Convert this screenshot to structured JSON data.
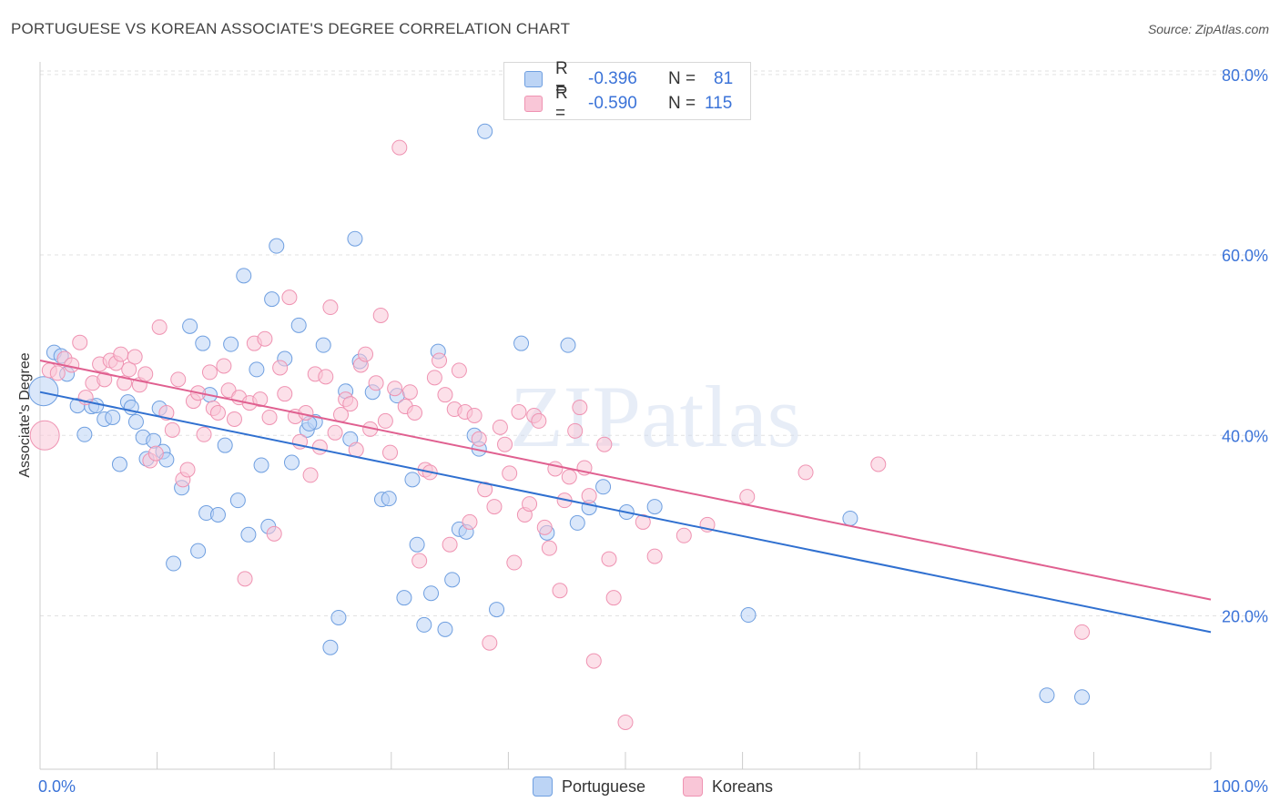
{
  "title": "PORTUGUESE VS KOREAN ASSOCIATE'S DEGREE CORRELATION CHART",
  "source": "Source: ZipAtlas.com",
  "watermark": "ZIPatlas",
  "legend": {
    "rows": [
      {
        "r_label": "R =",
        "r_value": "-0.396",
        "n_label": "N =",
        "n_value": "81"
      },
      {
        "r_label": "R =",
        "r_value": "-0.590",
        "n_label": "N =",
        "n_value": "115"
      }
    ]
  },
  "chart_data": {
    "type": "scatter",
    "title": "PORTUGUESE VS KOREAN ASSOCIATE'S DEGREE CORRELATION CHART",
    "xlabel": "",
    "ylabel": "Associate's Degree",
    "xlim": [
      0,
      100
    ],
    "ylim": [
      3,
      82
    ],
    "x_tick_labels": [
      "0.0%",
      "100.0%"
    ],
    "y_ticks": [
      20,
      40,
      60,
      80
    ],
    "y_tick_labels": [
      "20.0%",
      "40.0%",
      "60.0%",
      "80.0%"
    ],
    "grid": true,
    "legend_position": "top-center",
    "colors": {
      "portuguese": "#6f9fe0",
      "koreans": "#ef93b2",
      "portuguese_line": "#3070d0",
      "koreans_line": "#e06090",
      "tick_label": "#3b73d8"
    },
    "series": [
      {
        "name": "Portuguese",
        "stats": {
          "r": -0.396,
          "n": 81
        },
        "trend": {
          "x": [
            0,
            100
          ],
          "y": [
            44.8,
            18.2
          ]
        },
        "points": [
          [
            0.3,
            44.9
          ],
          [
            1.2,
            49.2
          ],
          [
            1.8,
            48.8
          ],
          [
            2.3,
            46.8
          ],
          [
            3.2,
            43.3
          ],
          [
            3.8,
            40.1
          ],
          [
            4.4,
            43.2
          ],
          [
            4.8,
            43.3
          ],
          [
            5.5,
            41.8
          ],
          [
            6.2,
            42.0
          ],
          [
            6.8,
            36.8
          ],
          [
            7.5,
            43.7
          ],
          [
            7.8,
            43.1
          ],
          [
            8.2,
            41.5
          ],
          [
            8.8,
            39.8
          ],
          [
            9.1,
            37.4
          ],
          [
            9.7,
            39.4
          ],
          [
            10.5,
            38.2
          ],
          [
            10.8,
            37.3
          ],
          [
            10.2,
            43.0
          ],
          [
            11.4,
            25.8
          ],
          [
            12.1,
            34.2
          ],
          [
            12.8,
            52.1
          ],
          [
            13.5,
            27.2
          ],
          [
            13.9,
            50.2
          ],
          [
            14.5,
            44.5
          ],
          [
            14.2,
            31.4
          ],
          [
            15.2,
            31.2
          ],
          [
            15.8,
            38.9
          ],
          [
            16.3,
            50.1
          ],
          [
            16.9,
            32.8
          ],
          [
            17.4,
            57.7
          ],
          [
            17.8,
            29.0
          ],
          [
            18.5,
            47.3
          ],
          [
            18.9,
            36.7
          ],
          [
            19.5,
            29.9
          ],
          [
            19.8,
            55.1
          ],
          [
            20.2,
            61.0
          ],
          [
            20.9,
            48.5
          ],
          [
            21.5,
            37.0
          ],
          [
            22.1,
            52.2
          ],
          [
            22.8,
            40.6
          ],
          [
            23.5,
            41.5
          ],
          [
            24.2,
            50.0
          ],
          [
            24.8,
            16.5
          ],
          [
            25.5,
            19.8
          ],
          [
            26.1,
            44.9
          ],
          [
            26.5,
            39.6
          ],
          [
            26.9,
            61.8
          ],
          [
            27.3,
            48.2
          ],
          [
            28.4,
            44.8
          ],
          [
            29.2,
            32.9
          ],
          [
            29.8,
            33.0
          ],
          [
            30.5,
            44.4
          ],
          [
            31.1,
            22.0
          ],
          [
            31.8,
            35.1
          ],
          [
            32.2,
            27.9
          ],
          [
            32.8,
            19.0
          ],
          [
            33.4,
            22.5
          ],
          [
            34.0,
            49.3
          ],
          [
            34.6,
            18.5
          ],
          [
            35.2,
            24.0
          ],
          [
            35.8,
            29.6
          ],
          [
            36.4,
            29.3
          ],
          [
            37.1,
            40.0
          ],
          [
            37.5,
            38.5
          ],
          [
            38.0,
            73.7
          ],
          [
            39.0,
            20.7
          ],
          [
            41.1,
            50.2
          ],
          [
            43.3,
            29.2
          ],
          [
            45.1,
            50.0
          ],
          [
            45.9,
            30.3
          ],
          [
            46.9,
            32.0
          ],
          [
            48.1,
            34.3
          ],
          [
            50.1,
            31.5
          ],
          [
            52.5,
            32.1
          ],
          [
            60.5,
            20.1
          ],
          [
            69.2,
            30.8
          ],
          [
            86.0,
            11.2
          ],
          [
            89.0,
            11.0
          ],
          [
            23.0,
            41.3
          ]
        ]
      },
      {
        "name": "Koreans",
        "stats": {
          "r": -0.59,
          "n": 115
        },
        "trend": {
          "x": [
            0,
            100
          ],
          "y": [
            48.3,
            21.8
          ]
        },
        "points": [
          [
            0.4,
            40.0
          ],
          [
            0.8,
            47.2
          ],
          [
            1.5,
            46.9
          ],
          [
            2.1,
            48.5
          ],
          [
            2.7,
            47.8
          ],
          [
            3.4,
            50.3
          ],
          [
            3.9,
            44.2
          ],
          [
            4.5,
            45.8
          ],
          [
            5.1,
            47.9
          ],
          [
            5.5,
            46.2
          ],
          [
            6.0,
            48.3
          ],
          [
            6.5,
            48.0
          ],
          [
            6.9,
            49.0
          ],
          [
            7.2,
            45.8
          ],
          [
            7.6,
            47.3
          ],
          [
            8.1,
            48.7
          ],
          [
            8.5,
            45.6
          ],
          [
            9.0,
            46.8
          ],
          [
            9.4,
            37.2
          ],
          [
            9.9,
            38.0
          ],
          [
            10.2,
            52.0
          ],
          [
            10.8,
            42.5
          ],
          [
            11.3,
            40.6
          ],
          [
            11.8,
            46.2
          ],
          [
            12.2,
            35.1
          ],
          [
            12.6,
            36.2
          ],
          [
            13.1,
            43.8
          ],
          [
            13.5,
            44.7
          ],
          [
            14.0,
            40.1
          ],
          [
            14.5,
            47.0
          ],
          [
            14.8,
            43.0
          ],
          [
            15.2,
            42.5
          ],
          [
            15.7,
            47.7
          ],
          [
            16.1,
            45.0
          ],
          [
            16.6,
            41.8
          ],
          [
            17.0,
            44.2
          ],
          [
            17.5,
            24.1
          ],
          [
            17.9,
            43.6
          ],
          [
            18.3,
            50.2
          ],
          [
            18.8,
            44.0
          ],
          [
            19.2,
            50.7
          ],
          [
            19.6,
            42.0
          ],
          [
            20.0,
            29.1
          ],
          [
            20.5,
            47.5
          ],
          [
            20.9,
            44.6
          ],
          [
            21.3,
            55.3
          ],
          [
            21.8,
            42.1
          ],
          [
            22.2,
            39.3
          ],
          [
            22.7,
            42.5
          ],
          [
            23.1,
            35.6
          ],
          [
            23.5,
            46.8
          ],
          [
            23.9,
            38.7
          ],
          [
            24.4,
            46.5
          ],
          [
            24.8,
            54.2
          ],
          [
            25.2,
            40.3
          ],
          [
            25.7,
            42.3
          ],
          [
            26.1,
            44.0
          ],
          [
            26.5,
            43.5
          ],
          [
            27.0,
            38.4
          ],
          [
            27.4,
            47.8
          ],
          [
            27.8,
            49.0
          ],
          [
            28.2,
            40.7
          ],
          [
            28.7,
            45.8
          ],
          [
            29.1,
            53.3
          ],
          [
            29.5,
            41.6
          ],
          [
            29.9,
            38.1
          ],
          [
            30.3,
            45.2
          ],
          [
            30.7,
            71.9
          ],
          [
            31.2,
            43.2
          ],
          [
            31.6,
            44.8
          ],
          [
            32.0,
            42.5
          ],
          [
            32.4,
            26.1
          ],
          [
            32.9,
            36.2
          ],
          [
            33.3,
            35.9
          ],
          [
            33.7,
            46.4
          ],
          [
            34.1,
            48.3
          ],
          [
            34.6,
            44.5
          ],
          [
            35.0,
            27.9
          ],
          [
            35.4,
            42.9
          ],
          [
            35.8,
            47.2
          ],
          [
            36.3,
            42.6
          ],
          [
            36.7,
            30.4
          ],
          [
            37.1,
            42.2
          ],
          [
            37.5,
            39.6
          ],
          [
            38.0,
            34.0
          ],
          [
            38.4,
            17.0
          ],
          [
            38.8,
            32.1
          ],
          [
            39.3,
            40.9
          ],
          [
            39.7,
            39.0
          ],
          [
            40.1,
            35.8
          ],
          [
            40.5,
            25.9
          ],
          [
            40.9,
            42.6
          ],
          [
            41.4,
            31.2
          ],
          [
            41.8,
            32.4
          ],
          [
            42.2,
            42.2
          ],
          [
            42.6,
            41.6
          ],
          [
            43.1,
            29.8
          ],
          [
            43.5,
            27.5
          ],
          [
            44.0,
            36.3
          ],
          [
            44.4,
            22.8
          ],
          [
            44.8,
            32.8
          ],
          [
            45.2,
            35.4
          ],
          [
            45.7,
            40.5
          ],
          [
            46.1,
            43.1
          ],
          [
            46.5,
            36.4
          ],
          [
            46.9,
            33.3
          ],
          [
            47.3,
            15.0
          ],
          [
            48.2,
            39.0
          ],
          [
            48.6,
            26.3
          ],
          [
            49.0,
            22.0
          ],
          [
            50.0,
            8.2
          ],
          [
            51.5,
            30.4
          ],
          [
            52.5,
            26.6
          ],
          [
            55.0,
            28.9
          ],
          [
            57.0,
            30.1
          ],
          [
            60.4,
            33.2
          ],
          [
            65.4,
            35.9
          ],
          [
            71.6,
            36.8
          ],
          [
            89.0,
            18.2
          ]
        ]
      }
    ]
  }
}
